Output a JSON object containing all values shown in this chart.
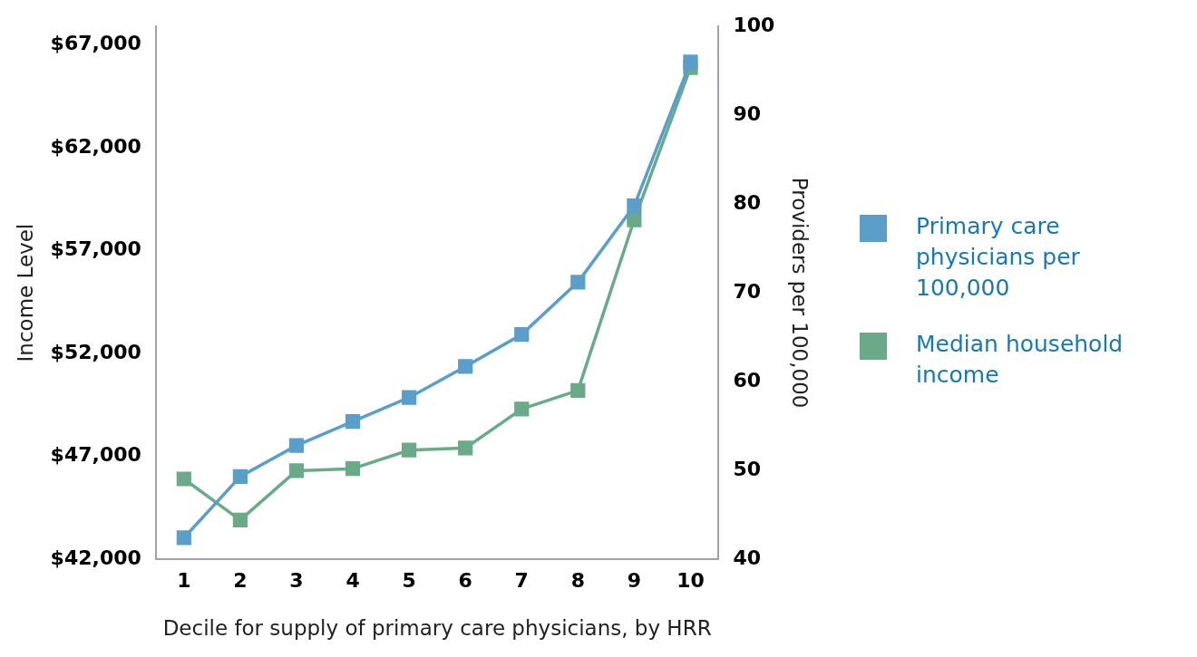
{
  "chart_data": {
    "type": "line",
    "xlabel": "Decile for supply of primary care physicians, by HRR",
    "ylabel": "Income Level",
    "y2label": "Providers per 100,000",
    "categories": [
      "1",
      "2",
      "3",
      "4",
      "5",
      "6",
      "7",
      "8",
      "9",
      "10"
    ],
    "series": [
      {
        "name": "Primary care physicians per 100,000",
        "color": "#5b9ec9",
        "axis": "y2",
        "values": [
          42.4,
          49.3,
          52.8,
          55.5,
          58.2,
          61.7,
          65.3,
          71.2,
          79.8,
          96.0
        ]
      },
      {
        "name": "Median household income",
        "color": "#6aaa88",
        "axis": "y",
        "values": [
          45900,
          43900,
          46300,
          46400,
          47300,
          47400,
          49300,
          50200,
          58500,
          65900
        ]
      }
    ],
    "ylim": [
      42000,
      67900
    ],
    "yticks": [
      {
        "value": 42000,
        "label": "$42,000"
      },
      {
        "value": 47000,
        "label": "$47,000"
      },
      {
        "value": 52000,
        "label": "$52,000"
      },
      {
        "value": 57000,
        "label": "$57,000"
      },
      {
        "value": 62000,
        "label": "$62,000"
      },
      {
        "value": 67000,
        "label": "$67,000"
      }
    ],
    "y2lim": [
      40,
      100
    ],
    "y2ticks": [
      40,
      50,
      60,
      70,
      80,
      90,
      100
    ],
    "grid": false,
    "legend": "right",
    "marker": "square",
    "line_style": "solid"
  }
}
